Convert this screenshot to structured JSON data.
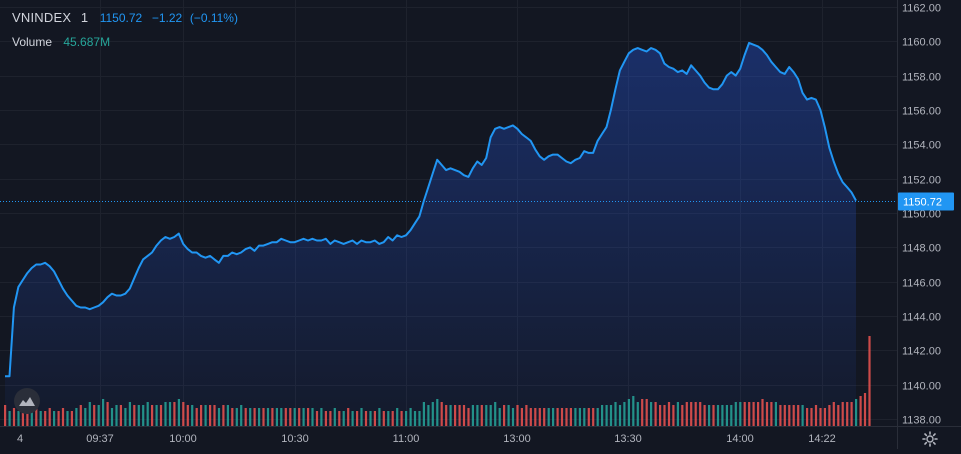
{
  "legend": {
    "symbol": "VNINDEX",
    "interval": "1",
    "last": "1150.72",
    "change": "−1.22",
    "change_pct": "(−0.11%)",
    "volume_label": "Volume",
    "volume_value": "45.687M"
  },
  "icons": {
    "logo": "tradingview-cloud-icon",
    "settings": "gear-icon"
  },
  "colors": {
    "background": "#131722",
    "line": "#2196f3",
    "volume_up": "#26a69a",
    "volume_down": "#ef5350",
    "grid": "#1e222d",
    "text": "#b2b5be"
  },
  "chart_data": {
    "type": "area",
    "title": "VNINDEX",
    "ylim": [
      1137.6,
      1162.4
    ],
    "y_ticks": [
      "1162.00",
      "1160.00",
      "1158.00",
      "1156.00",
      "1154.00",
      "1152.00",
      "1150.00",
      "1148.00",
      "1146.00",
      "1144.00",
      "1142.00",
      "1140.00",
      "1138.00"
    ],
    "x_ticks": [
      "4",
      "09:37",
      "10:00",
      "10:30",
      "11:00",
      "13:00",
      "13:30",
      "14:00",
      "14:22"
    ],
    "last_value_label": "1150.72",
    "grid": true,
    "series": [
      {
        "values": [
          1140.5,
          1140.5,
          1144.5,
          1145.7,
          1146.1,
          1146.5,
          1146.8,
          1147.0,
          1147.0,
          1147.1,
          1146.9,
          1146.6,
          1146.1,
          1145.6,
          1145.2,
          1144.9,
          1144.6,
          1144.5,
          1144.5,
          1144.4,
          1144.5,
          1144.6,
          1144.8,
          1145.1,
          1145.3,
          1145.2,
          1145.2,
          1145.3,
          1145.6,
          1146.2,
          1146.8,
          1147.3,
          1147.5,
          1147.7,
          1148.1,
          1148.4,
          1148.6,
          1148.5,
          1148.6,
          1148.8,
          1148.2,
          1147.9,
          1147.7,
          1147.7,
          1147.5,
          1147.4,
          1147.5,
          1147.3,
          1147.1,
          1147.5,
          1147.5,
          1147.7,
          1147.6,
          1147.7,
          1147.9,
          1148.0,
          1147.8,
          1148.1,
          1148.1,
          1148.2,
          1148.3,
          1148.3,
          1148.5,
          1148.4,
          1148.3,
          1148.3,
          1148.4,
          1148.5,
          1148.4,
          1148.5,
          1148.4,
          1148.4,
          1148.5,
          1148.2,
          1148.4,
          1148.3,
          1148.2,
          1148.3,
          1148.4,
          1148.2,
          1148.4,
          1148.3,
          1148.3,
          1148.4,
          1148.2,
          1148.3,
          1148.6,
          1148.4,
          1148.7,
          1148.6,
          1148.7,
          1149.0,
          1149.4,
          1149.8,
          1150.7,
          1151.5,
          1152.3,
          1153.1,
          1152.8,
          1152.5,
          1152.6,
          1152.5,
          1152.4,
          1152.2,
          1152.1,
          1152.6,
          1153.0,
          1152.8,
          1153.2,
          1154.4,
          1154.9,
          1155.0,
          1154.9,
          1155.0,
          1155.1,
          1154.9,
          1154.6,
          1154.4,
          1154.2,
          1153.7,
          1153.3,
          1153.1,
          1153.3,
          1153.4,
          1153.4,
          1153.2,
          1153.0,
          1152.9,
          1153.1,
          1153.2,
          1153.6,
          1153.5,
          1153.5,
          1154.2,
          1154.6,
          1155.0,
          1156.0,
          1157.2,
          1158.3,
          1158.8,
          1159.3,
          1159.5,
          1159.6,
          1159.5,
          1159.4,
          1159.6,
          1159.5,
          1159.3,
          1158.7,
          1158.5,
          1158.4,
          1158.2,
          1158.3,
          1158.1,
          1158.6,
          1158.3,
          1158.0,
          1157.6,
          1157.3,
          1157.2,
          1157.2,
          1157.5,
          1158.0,
          1158.2,
          1158.0,
          1158.4,
          1159.2,
          1159.9,
          1159.8,
          1159.7,
          1159.5,
          1159.2,
          1158.8,
          1158.5,
          1158.2,
          1158.1,
          1158.5,
          1158.2,
          1157.8,
          1157.0,
          1156.6,
          1156.7,
          1156.6,
          1156.0,
          1155.0,
          1153.8,
          1153.0,
          1152.3,
          1151.8,
          1151.5,
          1151.2,
          1150.72
        ]
      },
      {
        "name": "Volume",
        "values": [
          0.7,
          0.5,
          0.6,
          0.5,
          0.6,
          0.5,
          0.5,
          0.6,
          0.5,
          0.5,
          0.6,
          0.5,
          0.5,
          0.6,
          0.5,
          0.5,
          0.6,
          0.7,
          0.6,
          0.8,
          0.7,
          0.7,
          0.9,
          0.8,
          0.6,
          0.7,
          0.7,
          0.6,
          0.8,
          0.7,
          0.7,
          0.7,
          0.8,
          0.7,
          0.7,
          0.7,
          0.8,
          0.8,
          0.8,
          0.9,
          0.8,
          0.7,
          0.7,
          0.6,
          0.7,
          0.7,
          0.7,
          0.7,
          0.6,
          0.7,
          0.7,
          0.6,
          0.6,
          0.7,
          0.6,
          0.6,
          0.6,
          0.6,
          0.6,
          0.6,
          0.6,
          0.6,
          0.6,
          0.6,
          0.6,
          0.6,
          0.6,
          0.6,
          0.6,
          0.6,
          0.5,
          0.6,
          0.5,
          0.5,
          0.6,
          0.5,
          0.5,
          0.6,
          0.5,
          0.5,
          0.6,
          0.5,
          0.5,
          0.5,
          0.6,
          0.5,
          0.5,
          0.5,
          0.6,
          0.5,
          0.5,
          0.6,
          0.5,
          0.5,
          0.8,
          0.7,
          0.8,
          0.9,
          0.8,
          0.7,
          0.7,
          0.7,
          0.7,
          0.7,
          0.6,
          0.7,
          0.7,
          0.7,
          0.7,
          0.7,
          0.8,
          0.6,
          0.7,
          0.7,
          0.6,
          0.7,
          0.6,
          0.7,
          0.6,
          0.6,
          0.6,
          0.6,
          0.6,
          0.6,
          0.6,
          0.6,
          0.6,
          0.6,
          0.6,
          0.6,
          0.6,
          0.6,
          0.6,
          0.6,
          0.7,
          0.7,
          0.7,
          0.8,
          0.7,
          0.8,
          0.9,
          1.0,
          0.8,
          0.9,
          0.9,
          0.8,
          0.8,
          0.7,
          0.7,
          0.8,
          0.7,
          0.8,
          0.7,
          0.8,
          0.8,
          0.8,
          0.8,
          0.7,
          0.7,
          0.7,
          0.7,
          0.7,
          0.7,
          0.7,
          0.8,
          0.8,
          0.8,
          0.8,
          0.8,
          0.8,
          0.9,
          0.8,
          0.8,
          0.8,
          0.7,
          0.7,
          0.7,
          0.7,
          0.7,
          0.7,
          0.6,
          0.6,
          0.7,
          0.6,
          0.6,
          0.7,
          0.8,
          0.7,
          0.8,
          0.8,
          0.8,
          0.9,
          1.0,
          1.1,
          3.0
        ],
        "direction": [
          "down",
          "up",
          "down",
          "up",
          "down",
          "down",
          "up",
          "down",
          "up",
          "down",
          "down",
          "up",
          "down",
          "down",
          "up",
          "down",
          "up",
          "down",
          "up",
          "up",
          "down",
          "up",
          "up",
          "down",
          "up",
          "up",
          "down",
          "up",
          "up",
          "down",
          "up",
          "up",
          "up",
          "down",
          "up",
          "down",
          "up",
          "up",
          "down",
          "up",
          "down",
          "down",
          "up",
          "down",
          "down",
          "up",
          "down",
          "down",
          "up",
          "down",
          "up",
          "down",
          "up",
          "up",
          "down",
          "up",
          "down",
          "up",
          "down",
          "up",
          "down",
          "up",
          "up",
          "down",
          "down",
          "up",
          "down",
          "up",
          "down",
          "up",
          "down",
          "up",
          "down",
          "down",
          "up",
          "down",
          "up",
          "down",
          "up",
          "down",
          "up",
          "down",
          "up",
          "down",
          "up",
          "down",
          "up",
          "down",
          "up",
          "down",
          "up",
          "up",
          "up",
          "up",
          "up",
          "up",
          "up",
          "up",
          "down",
          "down",
          "up",
          "down",
          "down",
          "down",
          "down",
          "up",
          "up",
          "down",
          "up",
          "up",
          "up",
          "up",
          "down",
          "up",
          "up",
          "down",
          "down",
          "down",
          "down",
          "down",
          "down",
          "down",
          "up",
          "up",
          "down",
          "down",
          "down",
          "down",
          "up",
          "up",
          "up",
          "down",
          "down",
          "up",
          "up",
          "up",
          "up",
          "up",
          "up",
          "up",
          "up",
          "up",
          "up",
          "down",
          "down",
          "up",
          "down",
          "down",
          "down",
          "down",
          "down",
          "up",
          "down",
          "down",
          "down",
          "down",
          "down",
          "down",
          "up",
          "down",
          "up",
          "up",
          "up",
          "up",
          "up",
          "up",
          "down",
          "down",
          "down",
          "down",
          "down",
          "down",
          "down",
          "up",
          "down",
          "down",
          "down",
          "down",
          "down",
          "up",
          "down",
          "down",
          "down",
          "down",
          "down",
          "down",
          "down",
          "down",
          "down",
          "down",
          "down",
          "up"
        ]
      }
    ]
  }
}
